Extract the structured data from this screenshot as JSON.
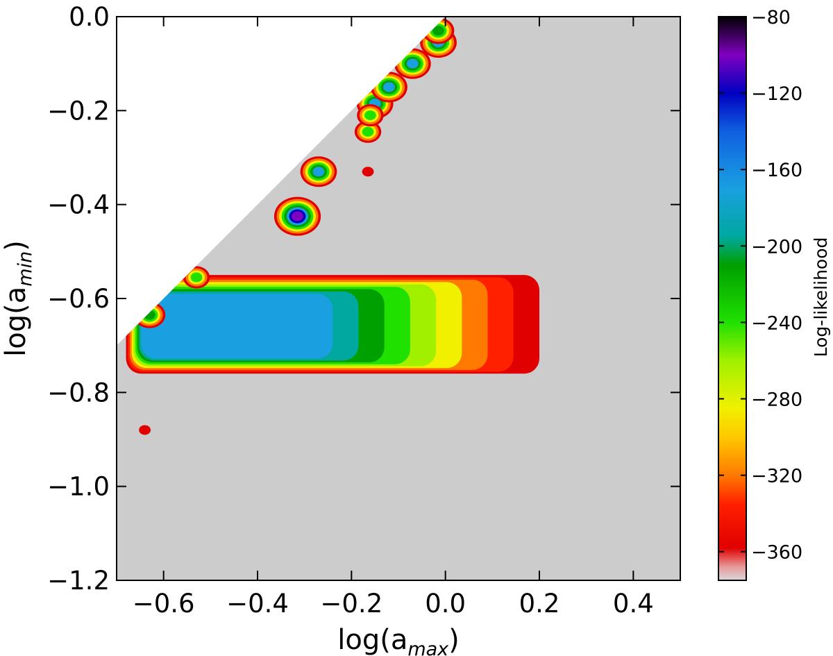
{
  "chart_data": {
    "type": "heatmap",
    "xlabel": {
      "base": "log(a",
      "sub": "max",
      "close": ")"
    },
    "ylabel": {
      "base": "log(a",
      "sub": "min",
      "close": ")"
    },
    "xlim": [
      -0.7,
      0.5
    ],
    "ylim": [
      -1.2,
      0.0
    ],
    "x_ticks": [
      -0.6,
      -0.4,
      -0.2,
      0.0,
      0.2,
      0.4
    ],
    "x_tick_labels": [
      "−0.6",
      "−0.4",
      "−0.2",
      "0.0",
      "0.2",
      "0.4"
    ],
    "y_ticks": [
      0.0,
      -0.2,
      -0.4,
      -0.6,
      -0.8,
      -1.0,
      -1.2
    ],
    "y_tick_labels": [
      "0.0",
      "−0.2",
      "−0.4",
      "−0.6",
      "−0.8",
      "−1.0",
      "−1.2"
    ],
    "colorbar": {
      "label": "Log-likelihood",
      "range": [
        -375,
        -80
      ],
      "ticks": [
        -80,
        -120,
        -160,
        -200,
        -240,
        -280,
        -320,
        -360
      ],
      "tick_labels": [
        "−80",
        "−120",
        "−160",
        "−200",
        "−240",
        "−280",
        "−320",
        "−360"
      ],
      "stops": [
        {
          "v": -375,
          "color": "#d8d8d8"
        },
        {
          "v": -368,
          "color": "#e89a9a"
        },
        {
          "v": -358,
          "color": "#e00000"
        },
        {
          "v": -335,
          "color": "#ff2000"
        },
        {
          "v": -320,
          "color": "#ff7a00"
        },
        {
          "v": -300,
          "color": "#ffc800"
        },
        {
          "v": -285,
          "color": "#f0f000"
        },
        {
          "v": -260,
          "color": "#a0f000"
        },
        {
          "v": -240,
          "color": "#20e000"
        },
        {
          "v": -210,
          "color": "#00a000"
        },
        {
          "v": -195,
          "color": "#00a8a0"
        },
        {
          "v": -170,
          "color": "#1aa0e0"
        },
        {
          "v": -140,
          "color": "#1060e0"
        },
        {
          "v": -120,
          "color": "#0000c0"
        },
        {
          "v": -100,
          "color": "#8000c0"
        },
        {
          "v": -80,
          "color": "#000000"
        }
      ]
    },
    "background_color": "#cccccc",
    "excluded_region": "log(a_min) > log(a_max)",
    "main_region": {
      "x_range": [
        -0.68,
        0.2
      ],
      "y_range": [
        -0.76,
        -0.55
      ],
      "peak_loglikelihood": -165,
      "peak_location": [
        -0.35,
        -0.65
      ]
    },
    "isolated_peaks": [
      {
        "x": -0.315,
        "y": -0.425,
        "value": -90
      },
      {
        "x": -0.27,
        "y": -0.33,
        "value": -150
      },
      {
        "x": -0.63,
        "y": -0.635,
        "value": -190
      },
      {
        "x": -0.53,
        "y": -0.555,
        "value": -230
      },
      {
        "x": -0.15,
        "y": -0.185,
        "value": -160
      },
      {
        "x": -0.12,
        "y": -0.15,
        "value": -170
      },
      {
        "x": -0.07,
        "y": -0.1,
        "value": -150
      },
      {
        "x": -0.015,
        "y": -0.055,
        "value": -140
      },
      {
        "x": -0.015,
        "y": -0.03,
        "value": -190
      },
      {
        "x": -0.165,
        "y": -0.245,
        "value": -230
      },
      {
        "x": -0.16,
        "y": -0.21,
        "value": -240
      },
      {
        "x": -0.165,
        "y": -0.33,
        "value": -350
      },
      {
        "x": -0.64,
        "y": -0.88,
        "value": -350
      }
    ]
  }
}
